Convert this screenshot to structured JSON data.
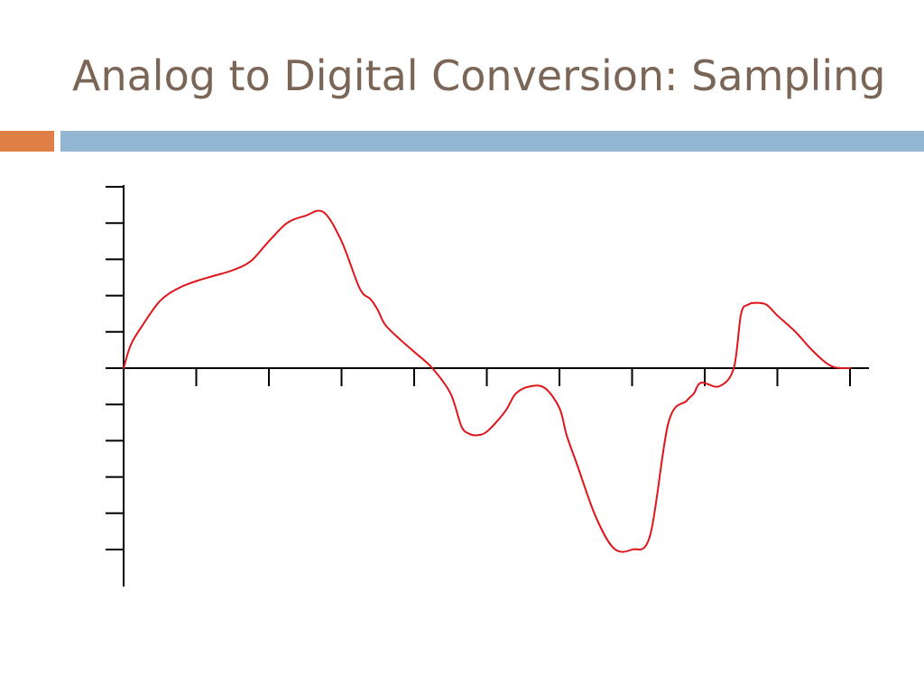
{
  "slide": {
    "title": "Analog to Digital Conversion: Sampling",
    "title_color": "#7a6556",
    "accent_bar_color": "#e07f45",
    "main_bar_color": "#93b6d2"
  },
  "chart_data": {
    "type": "line",
    "title": "",
    "xlabel": "",
    "ylabel": "",
    "xlim": [
      0,
      10
    ],
    "ylim": [
      -6,
      5
    ],
    "x_ticks": [
      1,
      2,
      3,
      4,
      5,
      6,
      7,
      8,
      9,
      10
    ],
    "y_ticks": [
      -5,
      -4,
      -3,
      -2,
      -1,
      1,
      2,
      3,
      4,
      5
    ],
    "grid": false,
    "axis_color": "#000000",
    "series": [
      {
        "color": "#e0141a",
        "x": [
          0,
          0.1,
          0.25,
          0.5,
          0.75,
          1.0,
          1.25,
          1.5,
          1.75,
          2.0,
          2.25,
          2.5,
          2.75,
          3.0,
          3.25,
          3.4,
          3.5,
          3.6,
          3.8,
          4.0,
          4.25,
          4.5,
          4.65,
          4.75,
          4.85,
          5.0,
          5.25,
          5.4,
          5.6,
          5.8,
          6.0,
          6.1,
          6.25,
          6.5,
          6.75,
          7.0,
          7.25,
          7.5,
          7.75,
          7.85,
          7.95,
          8.2,
          8.4,
          8.5,
          8.6,
          8.7,
          8.85,
          9.0,
          9.25,
          9.5,
          9.75,
          10.0
        ],
        "y": [
          0,
          0.65,
          1.15,
          1.85,
          2.2,
          2.4,
          2.55,
          2.7,
          2.95,
          3.5,
          4.0,
          4.2,
          4.3,
          3.5,
          2.2,
          1.9,
          1.6,
          1.2,
          0.8,
          0.45,
          0.0,
          -0.7,
          -1.6,
          -1.8,
          -1.85,
          -1.75,
          -1.2,
          -0.7,
          -0.5,
          -0.55,
          -1.1,
          -1.85,
          -2.7,
          -4.1,
          -4.97,
          -5.0,
          -4.6,
          -1.5,
          -0.9,
          -0.7,
          -0.4,
          -0.5,
          0.0,
          1.5,
          1.75,
          1.8,
          1.75,
          1.45,
          1.0,
          0.45,
          0.05,
          0.0
        ]
      }
    ]
  }
}
